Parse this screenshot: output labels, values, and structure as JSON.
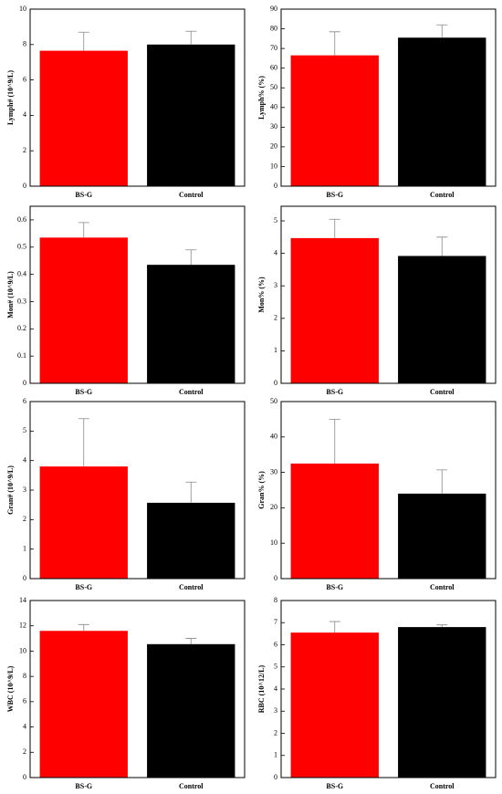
{
  "chart_data": [
    {
      "type": "bar",
      "ylabel": "Lymph# (10^9/L)",
      "categories": [
        "BS-G",
        "Control"
      ],
      "values": [
        7.65,
        8.0
      ],
      "errors": [
        1.05,
        0.75
      ],
      "colors": [
        "#ff0000",
        "#000000"
      ],
      "ylim": [
        0,
        10
      ],
      "yticks": [
        0,
        2,
        4,
        6,
        8,
        10
      ]
    },
    {
      "type": "bar",
      "ylabel": "Lymph% (%)",
      "categories": [
        "BS-G",
        "Control"
      ],
      "values": [
        66.5,
        75.5
      ],
      "errors": [
        12,
        6.5
      ],
      "colors": [
        "#ff0000",
        "#000000"
      ],
      "ylim": [
        0,
        90
      ],
      "yticks": [
        0,
        10,
        20,
        30,
        40,
        50,
        60,
        70,
        80,
        90
      ]
    },
    {
      "type": "bar",
      "ylabel": "Mon# (10^9/L)",
      "categories": [
        "BS-G",
        "Control"
      ],
      "values": [
        0.535,
        0.435
      ],
      "errors": [
        0.055,
        0.055
      ],
      "colors": [
        "#ff0000",
        "#000000"
      ],
      "ylim": [
        0,
        0.65
      ],
      "yticks": [
        0.0,
        0.1,
        0.2,
        0.3,
        0.4,
        0.5,
        0.6
      ]
    },
    {
      "type": "bar",
      "ylabel": "Mon% (%)",
      "categories": [
        "BS-G",
        "Control"
      ],
      "values": [
        4.47,
        3.92
      ],
      "errors": [
        0.58,
        0.58
      ],
      "colors": [
        "#ff0000",
        "#000000"
      ],
      "ylim": [
        0,
        5.45
      ],
      "yticks": [
        0,
        1,
        2,
        3,
        4,
        5
      ]
    },
    {
      "type": "bar",
      "ylabel": "Gran# (10^9/L)",
      "categories": [
        "BS-G",
        "Control"
      ],
      "values": [
        3.8,
        2.57
      ],
      "errors": [
        1.62,
        0.7
      ],
      "colors": [
        "#ff0000",
        "#000000"
      ],
      "ylim": [
        0,
        6
      ],
      "yticks": [
        0,
        1,
        2,
        3,
        4,
        5,
        6
      ]
    },
    {
      "type": "bar",
      "ylabel": "Gran% (%)",
      "categories": [
        "BS-G",
        "Control"
      ],
      "values": [
        32.5,
        24
      ],
      "errors": [
        12.5,
        6.7
      ],
      "colors": [
        "#ff0000",
        "#000000"
      ],
      "ylim": [
        0,
        50
      ],
      "yticks": [
        0,
        10,
        20,
        30,
        40,
        50
      ]
    },
    {
      "type": "bar",
      "ylabel": "WBC (10^9/L)",
      "categories": [
        "BS-G",
        "Control"
      ],
      "values": [
        11.6,
        10.55
      ],
      "errors": [
        0.5,
        0.45
      ],
      "colors": [
        "#ff0000",
        "#000000"
      ],
      "ylim": [
        0,
        14
      ],
      "yticks": [
        0,
        2,
        4,
        6,
        8,
        10,
        12,
        14
      ]
    },
    {
      "type": "bar",
      "ylabel": "RBC (10^12/L)",
      "categories": [
        "BS-G",
        "Control"
      ],
      "values": [
        6.55,
        6.8
      ],
      "errors": [
        0.5,
        0.1
      ],
      "colors": [
        "#ff0000",
        "#000000"
      ],
      "ylim": [
        0,
        8
      ],
      "yticks": [
        0,
        1,
        2,
        3,
        4,
        5,
        6,
        7,
        8
      ]
    }
  ]
}
